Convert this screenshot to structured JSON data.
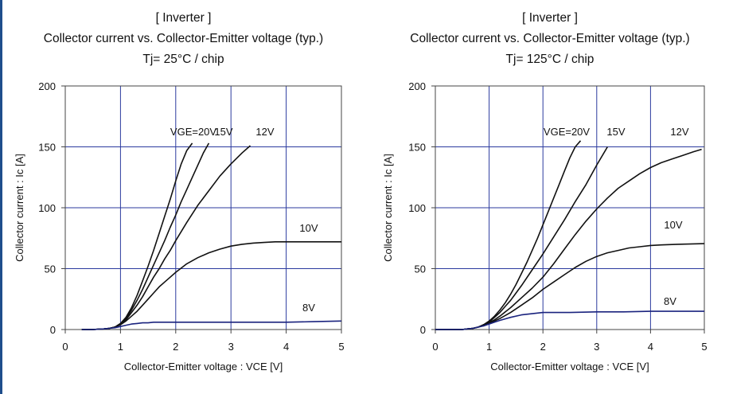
{
  "charts": [
    {
      "title_lines": [
        "[ Inverter ]",
        "Collector current vs. Collector-Emitter voltage (typ.)",
        "Tj= 25°C / chip"
      ],
      "xlabel": "Collector-Emitter voltage : VCE [V]",
      "ylabel": "Collector current : Ic [A]",
      "x_ticks": [
        "0",
        "1",
        "2",
        "3",
        "4",
        "5"
      ],
      "y_ticks": [
        "0",
        "50",
        "100",
        "150",
        "200"
      ],
      "curve_labels": [
        "VGE=20V",
        "15V",
        "12V",
        "10V",
        "8V"
      ]
    },
    {
      "title_lines": [
        "[ Inverter ]",
        "Collector current vs. Collector-Emitter voltage (typ.)",
        "Tj= 125°C / chip"
      ],
      "xlabel": "Collector-Emitter voltage : VCE [V]",
      "ylabel": "Collector current : Ic [A]",
      "x_ticks": [
        "0",
        "1",
        "2",
        "3",
        "4",
        "5"
      ],
      "y_ticks": [
        "0",
        "50",
        "100",
        "150",
        "200"
      ],
      "curve_labels": [
        "VGE=20V",
        "15V",
        "12V",
        "10V",
        "8V"
      ]
    }
  ],
  "chart_data": [
    {
      "type": "line",
      "title": "[ Inverter ] Collector current vs. Collector-Emitter voltage (typ.) Tj= 25°C / chip",
      "xlabel": "Collector-Emitter voltage : VCE [V]",
      "ylabel": "Collector current : Ic [A]",
      "xlim": [
        0,
        5
      ],
      "ylim": [
        0,
        200
      ],
      "grid": true,
      "colors": {
        "curve": "#111111",
        "curve_8v": "#1a237e",
        "grid": "#2b3a9e"
      },
      "series": [
        {
          "name": "VGE=20V",
          "x": [
            0.3,
            0.5,
            0.7,
            0.8,
            0.9,
            1.0,
            1.1,
            1.2,
            1.3,
            1.4,
            1.5,
            1.6,
            1.7,
            1.8,
            1.9,
            2.0,
            2.1,
            2.2,
            2.3
          ],
          "y": [
            0,
            0,
            0.5,
            1,
            2,
            5,
            10,
            18,
            28,
            40,
            52,
            65,
            79,
            93,
            107,
            122,
            136,
            147,
            153
          ]
        },
        {
          "name": "15V",
          "x": [
            0.3,
            0.5,
            0.7,
            0.8,
            0.9,
            1.0,
            1.1,
            1.2,
            1.3,
            1.4,
            1.5,
            1.6,
            1.7,
            1.8,
            1.9,
            2.0,
            2.1,
            2.2,
            2.3,
            2.4,
            2.5,
            2.6
          ],
          "y": [
            0,
            0,
            0.5,
            1,
            2,
            5,
            9,
            16,
            24,
            33,
            43,
            53,
            63,
            73,
            84,
            94,
            105,
            115,
            125,
            135,
            145,
            153
          ]
        },
        {
          "name": "12V",
          "x": [
            0.3,
            0.5,
            0.7,
            0.8,
            0.9,
            1.0,
            1.1,
            1.2,
            1.3,
            1.4,
            1.5,
            1.6,
            1.7,
            1.8,
            1.9,
            2.0,
            2.2,
            2.4,
            2.6,
            2.8,
            3.0,
            3.2,
            3.35
          ],
          "y": [
            0,
            0,
            0.5,
            1,
            2,
            4,
            8,
            14,
            20,
            27,
            35,
            43,
            50,
            58,
            65,
            73,
            88,
            102,
            114,
            126,
            136,
            145,
            151
          ]
        },
        {
          "name": "10V",
          "x": [
            0.3,
            0.5,
            0.7,
            0.8,
            0.9,
            1.0,
            1.1,
            1.2,
            1.3,
            1.4,
            1.5,
            1.6,
            1.7,
            1.8,
            1.9,
            2.0,
            2.2,
            2.4,
            2.6,
            2.8,
            3.0,
            3.2,
            3.4,
            3.6,
            3.8,
            4.0,
            4.2,
            4.5,
            5.0
          ],
          "y": [
            0,
            0,
            0.5,
            1,
            2,
            4,
            7,
            11,
            15,
            20,
            25,
            30,
            35,
            39,
            43,
            47,
            54,
            59,
            63,
            66,
            68.5,
            70,
            71,
            71.5,
            72,
            72,
            72,
            72,
            72
          ]
        },
        {
          "name": "8V",
          "x": [
            0.3,
            0.5,
            0.7,
            0.8,
            0.9,
            1.0,
            1.1,
            1.2,
            1.3,
            1.4,
            1.5,
            1.6,
            1.8,
            2.0,
            2.5,
            3.0,
            3.5,
            4.0,
            4.5,
            5.0
          ],
          "y": [
            0,
            0,
            0.5,
            1,
            1.5,
            2.5,
            3.5,
            4.5,
            5,
            5.5,
            5.5,
            6,
            6,
            6,
            6,
            6,
            6,
            6,
            6.5,
            7
          ]
        }
      ]
    },
    {
      "type": "line",
      "title": "[ Inverter ] Collector current vs. Collector-Emitter voltage (typ.) Tj= 125°C / chip",
      "xlabel": "Collector-Emitter voltage : VCE [V]",
      "ylabel": "Collector current : Ic [A]",
      "xlim": [
        0,
        5
      ],
      "ylim": [
        0,
        200
      ],
      "grid": true,
      "colors": {
        "curve": "#111111",
        "curve_8v": "#1a237e",
        "grid": "#2b3a9e"
      },
      "series": [
        {
          "name": "VGE=20V",
          "x": [
            0,
            0.5,
            0.6,
            0.7,
            0.8,
            0.9,
            1.0,
            1.1,
            1.2,
            1.3,
            1.4,
            1.5,
            1.6,
            1.7,
            1.8,
            1.9,
            2.0,
            2.1,
            2.2,
            2.3,
            2.4,
            2.5,
            2.6,
            2.7
          ],
          "y": [
            0,
            0,
            0.5,
            1,
            2,
            4,
            7,
            11,
            16,
            22,
            29,
            37,
            46,
            55,
            65,
            75,
            86,
            97,
            108,
            119,
            130,
            141,
            150,
            155
          ]
        },
        {
          "name": "15V",
          "x": [
            0,
            0.5,
            0.6,
            0.7,
            0.8,
            0.9,
            1.0,
            1.1,
            1.2,
            1.3,
            1.4,
            1.5,
            1.6,
            1.8,
            2.0,
            2.2,
            2.4,
            2.6,
            2.8,
            3.0,
            3.2
          ],
          "y": [
            0,
            0,
            0.5,
            1,
            2,
            4,
            6,
            10,
            14,
            19,
            24,
            30,
            36,
            49,
            62,
            76,
            90,
            105,
            119,
            135,
            150
          ]
        },
        {
          "name": "12V",
          "x": [
            0,
            0.5,
            0.6,
            0.7,
            0.8,
            0.9,
            1.0,
            1.1,
            1.2,
            1.4,
            1.6,
            1.8,
            2.0,
            2.2,
            2.4,
            2.6,
            2.8,
            3.0,
            3.2,
            3.4,
            3.6,
            3.8,
            4.0,
            4.2,
            4.4,
            4.6,
            4.8,
            4.95
          ],
          "y": [
            0,
            0,
            0.5,
            1,
            2,
            3.5,
            5.5,
            8,
            11,
            18,
            26,
            34,
            43,
            54,
            66,
            78,
            89,
            99,
            108,
            116,
            122,
            128,
            133,
            137,
            140,
            143,
            146,
            148
          ]
        },
        {
          "name": "10V",
          "x": [
            0,
            0.5,
            0.6,
            0.7,
            0.8,
            0.9,
            1.0,
            1.1,
            1.2,
            1.4,
            1.6,
            1.8,
            2.0,
            2.2,
            2.4,
            2.6,
            2.8,
            3.0,
            3.2,
            3.4,
            3.6,
            3.8,
            4.0,
            4.2,
            4.5,
            5.0
          ],
          "y": [
            0,
            0,
            0.5,
            1,
            2,
            3,
            5,
            7,
            9,
            14,
            20,
            26,
            33,
            39,
            45,
            51,
            56,
            60,
            63,
            65,
            67,
            68,
            69,
            69.5,
            70,
            70.5
          ]
        },
        {
          "name": "8V",
          "x": [
            0,
            0.5,
            0.6,
            0.7,
            0.8,
            0.9,
            1.0,
            1.1,
            1.2,
            1.4,
            1.6,
            1.8,
            2.0,
            2.5,
            3.0,
            3.5,
            4.0,
            4.5,
            5.0
          ],
          "y": [
            0,
            0,
            0.5,
            1,
            2,
            3,
            4.5,
            6,
            7.5,
            10,
            12,
            13,
            14,
            14,
            14.5,
            14.5,
            15,
            15,
            15
          ]
        }
      ]
    }
  ]
}
